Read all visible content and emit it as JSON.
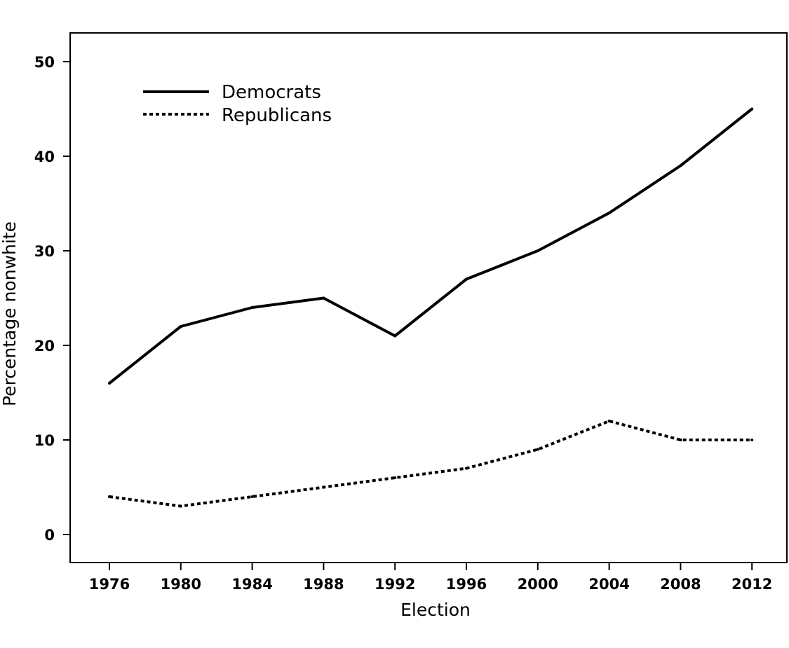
{
  "chart_data": {
    "type": "line",
    "title": "",
    "xlabel": "Election",
    "ylabel": "Percentage nonwhite",
    "x": [
      "1976",
      "1980",
      "1984",
      "1988",
      "1992",
      "1996",
      "2000",
      "2004",
      "2008",
      "2012"
    ],
    "yticks": [
      "0",
      "10",
      "20",
      "30",
      "40",
      "50"
    ],
    "ylim": [
      -3,
      53
    ],
    "grid": false,
    "legend_position": "top-left",
    "series": [
      {
        "name": "Democrats",
        "line_style": "solid",
        "color": "#000000",
        "values": [
          16,
          22,
          24,
          25,
          21,
          27,
          30,
          34,
          39,
          45
        ]
      },
      {
        "name": "Republicans",
        "line_style": "dotted",
        "color": "#000000",
        "values": [
          4,
          3,
          4,
          5,
          6,
          7,
          9,
          12,
          10,
          10
        ]
      }
    ]
  }
}
